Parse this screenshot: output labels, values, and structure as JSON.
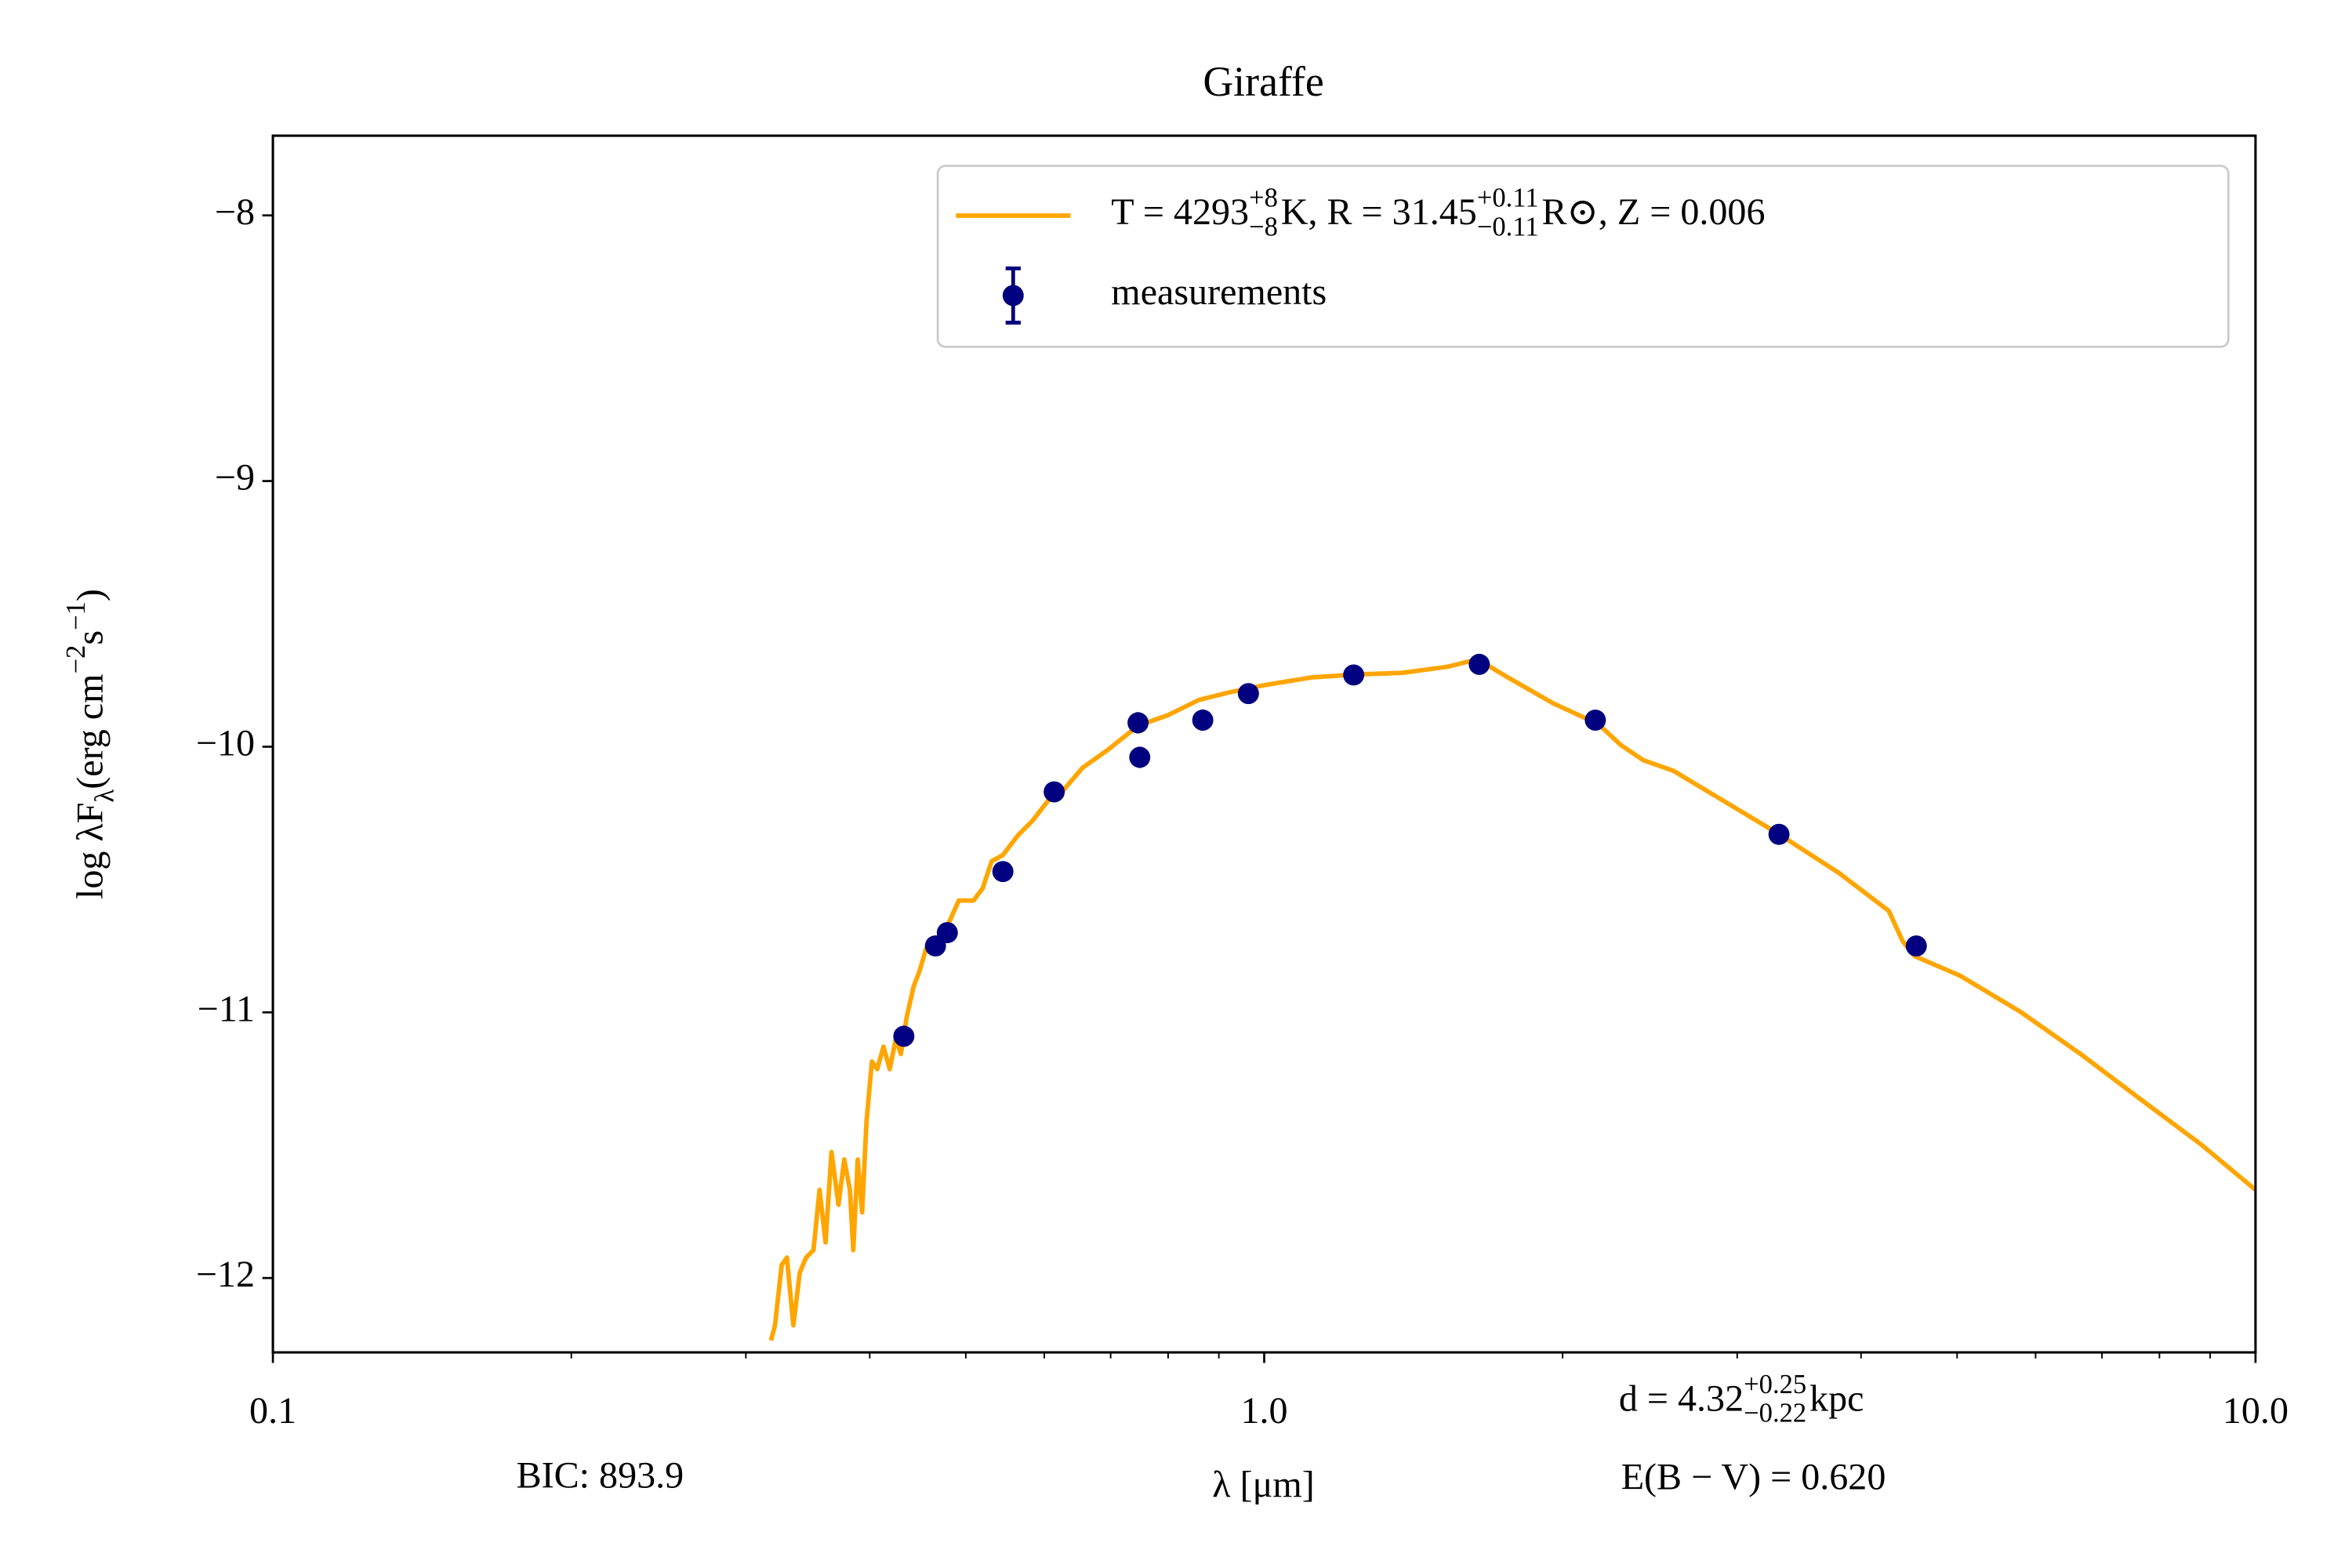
{
  "chart_data": {
    "type": "line",
    "title": "Giraffe",
    "x_label": "λ [μm]",
    "y_label": [
      "log λF",
      "λ",
      " (erg cm",
      "−2",
      "s",
      "−1",
      ")"
    ],
    "xscale": "log",
    "xlim": [
      0.1,
      10.0
    ],
    "xticks": [
      {
        "value": 0.1,
        "label": "0.1"
      },
      {
        "value": 1.0,
        "label": "1.0"
      },
      {
        "value": 10.0,
        "label": "10.0"
      }
    ],
    "xticks_minor": [
      0.2,
      0.3,
      0.4,
      0.5,
      0.6,
      0.7,
      0.8,
      0.9,
      2,
      3,
      4,
      5,
      6,
      7,
      8,
      9
    ],
    "ylim": [
      -12.28,
      -7.7
    ],
    "yticks": [
      {
        "value": -12,
        "label": "−12"
      },
      {
        "value": -11,
        "label": "−11"
      },
      {
        "value": -10,
        "label": "−10"
      },
      {
        "value": -9,
        "label": "−9"
      },
      {
        "value": -8,
        "label": "−8"
      }
    ],
    "legend": "upper right",
    "series": [
      {
        "type": "line",
        "name": [
          "T = 4293",
          "+8",
          "−8",
          " K, R = 31.45",
          "+0.11",
          "−0.11",
          " R⊙, Z = 0.006"
        ],
        "color": "#ffa500",
        "x": [
          0.318,
          0.321,
          0.326,
          0.33,
          0.335,
          0.34,
          0.345,
          0.351,
          0.356,
          0.361,
          0.366,
          0.372,
          0.377,
          0.382,
          0.385,
          0.389,
          0.393,
          0.397,
          0.402,
          0.407,
          0.413,
          0.419,
          0.425,
          0.43,
          0.436,
          0.443,
          0.449,
          0.456,
          0.466,
          0.479,
          0.492,
          0.509,
          0.52,
          0.531,
          0.545,
          0.564,
          0.584,
          0.605,
          0.627,
          0.656,
          0.696,
          0.746,
          0.8,
          0.859,
          0.921,
          1.005,
          1.117,
          1.24,
          1.377,
          1.531,
          1.641,
          1.761,
          1.955,
          2.173,
          2.29,
          2.413,
          2.588,
          2.874,
          3.305,
          3.802,
          4.266,
          4.406,
          4.529,
          5.035,
          5.794,
          6.663,
          7.656,
          8.811,
          10.0
        ],
        "values": [
          -12.235,
          -12.178,
          -11.951,
          -11.923,
          -12.178,
          -11.98,
          -11.923,
          -11.895,
          -11.668,
          -11.866,
          -11.526,
          -11.724,
          -11.554,
          -11.668,
          -11.895,
          -11.554,
          -11.753,
          -11.412,
          -11.185,
          -11.214,
          -11.129,
          -11.214,
          -11.1,
          -11.157,
          -11.015,
          -10.902,
          -10.845,
          -10.76,
          -10.732,
          -10.675,
          -10.579,
          -10.579,
          -10.533,
          -10.431,
          -10.408,
          -10.335,
          -10.278,
          -10.204,
          -10.164,
          -10.079,
          -10.011,
          -9.921,
          -9.881,
          -9.824,
          -9.796,
          -9.767,
          -9.739,
          -9.728,
          -9.722,
          -9.699,
          -9.671,
          -9.739,
          -9.836,
          -9.915,
          -9.994,
          -10.051,
          -10.091,
          -10.193,
          -10.329,
          -10.476,
          -10.618,
          -10.732,
          -10.788,
          -10.862,
          -10.998,
          -11.157,
          -11.327,
          -11.497,
          -11.668
        ]
      },
      {
        "type": "errorbar",
        "name": [
          "measurements"
        ],
        "color": "#000080",
        "x": [
          0.433,
          0.466,
          0.479,
          0.545,
          0.614,
          0.746,
          0.749,
          0.867,
          0.964,
          1.231,
          1.648,
          2.158,
          3.306,
          4.548
        ],
        "values": [
          -11.09,
          -10.75,
          -10.7,
          -10.47,
          -10.17,
          -9.91,
          -10.04,
          -9.9,
          -9.8,
          -9.73,
          -9.69,
          -9.9,
          -10.33,
          -10.75
        ],
        "errors": [
          0.03,
          0.03,
          0.02,
          0.02,
          0.02,
          0.04,
          0.04,
          0.04,
          0.02,
          0.02,
          0.02,
          0.02,
          0.02,
          0.02
        ]
      }
    ],
    "annotations": {
      "bic": "BIC: 893.9",
      "distance": [
        "d = 4.32",
        "+0.25",
        "−0.22",
        " kpc"
      ],
      "extinction": "E(B − V) = 0.620"
    }
  }
}
